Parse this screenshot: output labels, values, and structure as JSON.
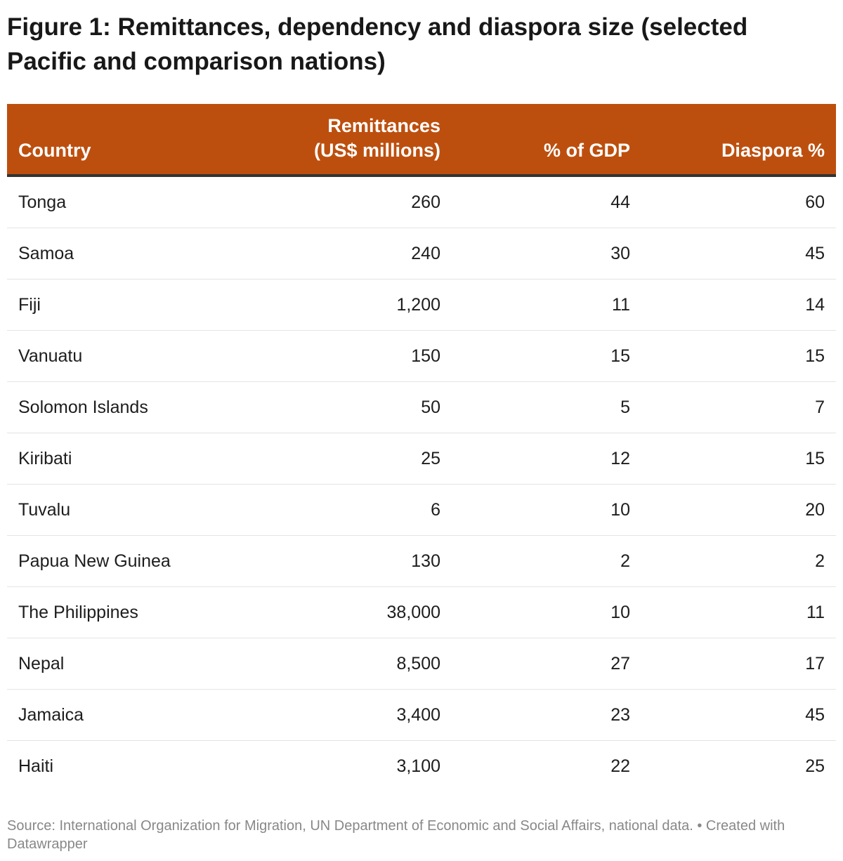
{
  "title": "Figure 1: Remittances, dependency and diaspora size (selected Pacific and comparison nations)",
  "footer": "Source: International Organization for Migration, UN Department of Economic and Social Affairs, national data. • Created with Datawrapper",
  "colors": {
    "header_bg": "#bd4f0e",
    "header_text": "#ffffff"
  },
  "chart_data": {
    "type": "table",
    "columns": [
      "Country",
      "Remittances (US$ millions)",
      "% of GDP",
      "Diaspora %"
    ],
    "rows": [
      [
        "Tonga",
        "260",
        "44",
        "60"
      ],
      [
        "Samoa",
        "240",
        "30",
        "45"
      ],
      [
        "Fiji",
        "1,200",
        "11",
        "14"
      ],
      [
        "Vanuatu",
        "150",
        "15",
        "15"
      ],
      [
        "Solomon Islands",
        "50",
        "5",
        "7"
      ],
      [
        "Kiribati",
        "25",
        "12",
        "15"
      ],
      [
        "Tuvalu",
        "6",
        "10",
        "20"
      ],
      [
        "Papua New Guinea",
        "130",
        "2",
        "2"
      ],
      [
        "The Philippines",
        "38,000",
        "10",
        "11"
      ],
      [
        "Nepal",
        "8,500",
        "27",
        "17"
      ],
      [
        "Jamaica",
        "3,400",
        "23",
        "45"
      ],
      [
        "Haiti",
        "3,100",
        "22",
        "25"
      ]
    ]
  }
}
